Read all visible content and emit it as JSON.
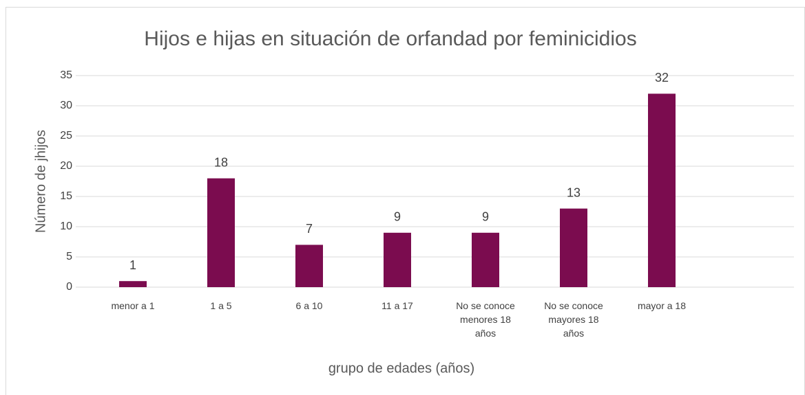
{
  "chart_data": {
    "type": "bar",
    "title": "Hijos e hijas en situación de orfandad por feminicidios",
    "x_label": "grupo de edades (años)",
    "y_label": "Número de jhijos",
    "categories": [
      "menor a 1",
      "1 a 5",
      "6 a 10",
      "11 a 17",
      "No se conoce menores 18 años",
      "No se conoce mayores 18 años",
      "mayor a 18",
      null
    ],
    "values": [
      1,
      18,
      7,
      9,
      9,
      13,
      32,
      null
    ],
    "color": "#7b0c4f",
    "ylim": [
      0,
      35
    ],
    "yticks": [
      0,
      5,
      10,
      15,
      20,
      25,
      30,
      35
    ],
    "grid": true
  }
}
